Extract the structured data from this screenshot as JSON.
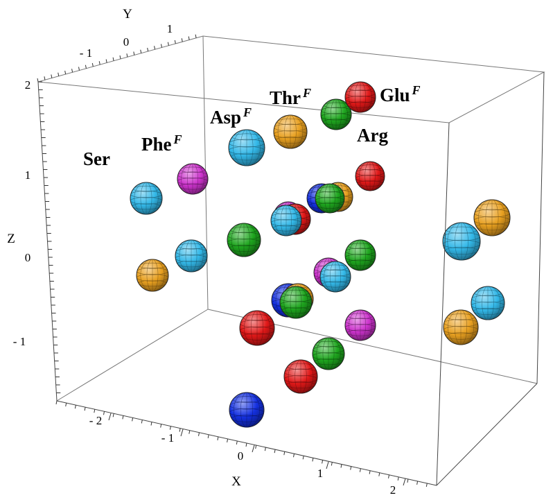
{
  "chart_data": {
    "type": "scatter",
    "subtype": "3d-spheres",
    "axes": {
      "x": {
        "label": "X",
        "ticks": [
          "- 2",
          "- 1",
          "0",
          "1",
          "2"
        ]
      },
      "y": {
        "label": "Y",
        "ticks": [
          "- 1",
          "0",
          "1"
        ]
      },
      "z": {
        "label": "Z",
        "ticks": [
          "- 1",
          "0",
          "1",
          "2"
        ]
      }
    },
    "colors": {
      "red": "#e01818",
      "blue": "#1430e0",
      "green": "#1ea51e",
      "magenta": "#cc33cc",
      "cyan": "#33b8e8",
      "orange": "#e8a020"
    },
    "labels": [
      {
        "name": "Ser",
        "sup": ""
      },
      {
        "name": "Phe",
        "sup": "F"
      },
      {
        "name": "Asp",
        "sup": "F"
      },
      {
        "name": "Thr",
        "sup": "F"
      },
      {
        "name": "Glu",
        "sup": "F"
      },
      {
        "name": "Arg",
        "sup": ""
      }
    ],
    "spheres": [
      {
        "color": "blue"
      },
      {
        "color": "red"
      },
      {
        "color": "green"
      },
      {
        "color": "magenta"
      },
      {
        "color": "red"
      },
      {
        "color": "orange"
      },
      {
        "color": "cyan"
      },
      {
        "color": "blue"
      },
      {
        "color": "orange"
      },
      {
        "color": "green"
      },
      {
        "color": "orange"
      },
      {
        "color": "cyan"
      },
      {
        "color": "magenta"
      },
      {
        "color": "cyan"
      },
      {
        "color": "green"
      },
      {
        "color": "cyan"
      },
      {
        "color": "green"
      },
      {
        "color": "orange"
      },
      {
        "color": "magenta"
      },
      {
        "color": "red"
      },
      {
        "color": "cyan"
      },
      {
        "color": "cyan"
      },
      {
        "color": "blue"
      },
      {
        "color": "orange"
      },
      {
        "color": "green"
      },
      {
        "color": "red"
      },
      {
        "color": "magenta"
      },
      {
        "color": "orange"
      },
      {
        "color": "cyan"
      },
      {
        "color": "green"
      },
      {
        "color": "red"
      },
      {
        "color": "blue"
      }
    ]
  }
}
